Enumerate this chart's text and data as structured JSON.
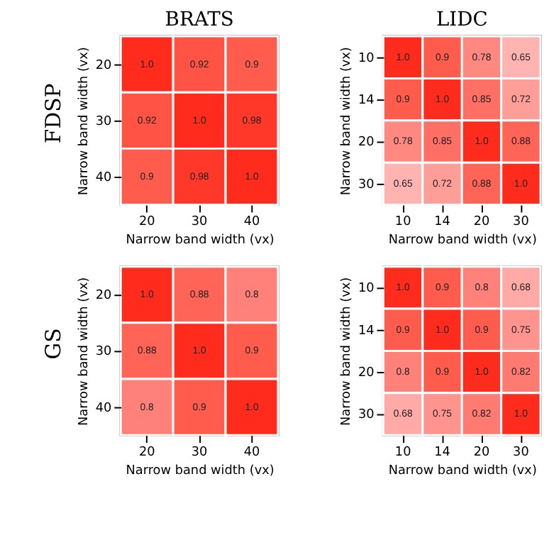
{
  "chart_data": [
    {
      "type": "heatmap",
      "title": "BRATS",
      "xlabel": "Narrow band width (vx)",
      "ylabel": "Narrow band width (vx)",
      "annotations": [
        "FDSP"
      ],
      "categories": [
        "20",
        "30",
        "40"
      ],
      "y_categories": [
        "20",
        "30",
        "40"
      ],
      "cells": [
        [
          1.0,
          0.92,
          0.9
        ],
        [
          0.92,
          1.0,
          0.98
        ],
        [
          0.9,
          0.98,
          1.0
        ]
      ],
      "cell_labels": [
        [
          "1.0",
          "0.92",
          "0.9"
        ],
        [
          "0.92",
          "1.0",
          "0.98"
        ],
        [
          "0.9",
          "0.98",
          "1.0"
        ]
      ]
    },
    {
      "type": "heatmap",
      "title": "LIDC",
      "xlabel": "Narrow band width (vx)",
      "ylabel": "Narrow band width (vx)",
      "categories": [
        "10",
        "14",
        "20",
        "30"
      ],
      "y_categories": [
        "10",
        "14",
        "20",
        "30"
      ],
      "cells": [
        [
          1.0,
          0.9,
          0.78,
          0.65
        ],
        [
          0.9,
          1.0,
          0.85,
          0.72
        ],
        [
          0.78,
          0.85,
          1.0,
          0.88
        ],
        [
          0.65,
          0.72,
          0.88,
          1.0
        ]
      ],
      "cell_labels": [
        [
          "1.0",
          "0.9",
          "0.78",
          "0.65"
        ],
        [
          "0.9",
          "1.0",
          "0.85",
          "0.72"
        ],
        [
          "0.78",
          "0.85",
          "1.0",
          "0.88"
        ],
        [
          "0.65",
          "0.72",
          "0.88",
          "1.0"
        ]
      ]
    },
    {
      "type": "heatmap",
      "xlabel": "Narrow band width (vx)",
      "ylabel": "Narrow band width (vx)",
      "annotations": [
        "GS"
      ],
      "categories": [
        "20",
        "30",
        "40"
      ],
      "y_categories": [
        "20",
        "30",
        "40"
      ],
      "cells": [
        [
          1.0,
          0.88,
          0.8
        ],
        [
          0.88,
          1.0,
          0.9
        ],
        [
          0.8,
          0.9,
          1.0
        ]
      ],
      "cell_labels": [
        [
          "1.0",
          "0.88",
          "0.8"
        ],
        [
          "0.88",
          "1.0",
          "0.9"
        ],
        [
          "0.8",
          "0.9",
          "1.0"
        ]
      ]
    },
    {
      "type": "heatmap",
      "xlabel": "Narrow band width (vx)",
      "ylabel": "Narrow band width (vx)",
      "categories": [
        "10",
        "14",
        "20",
        "30"
      ],
      "y_categories": [
        "10",
        "14",
        "20",
        "30"
      ],
      "cells": [
        [
          1.0,
          0.9,
          0.8,
          0.68
        ],
        [
          0.9,
          1.0,
          0.9,
          0.75
        ],
        [
          0.8,
          0.9,
          1.0,
          0.82
        ],
        [
          0.68,
          0.75,
          0.82,
          1.0
        ]
      ],
      "cell_labels": [
        [
          "1.0",
          "0.9",
          "0.8",
          "0.68"
        ],
        [
          "0.9",
          "1.0",
          "0.9",
          "0.75"
        ],
        [
          "0.8",
          "0.9",
          "1.0",
          "0.82"
        ],
        [
          "0.68",
          "0.75",
          "0.82",
          "1.0"
        ]
      ]
    }
  ]
}
